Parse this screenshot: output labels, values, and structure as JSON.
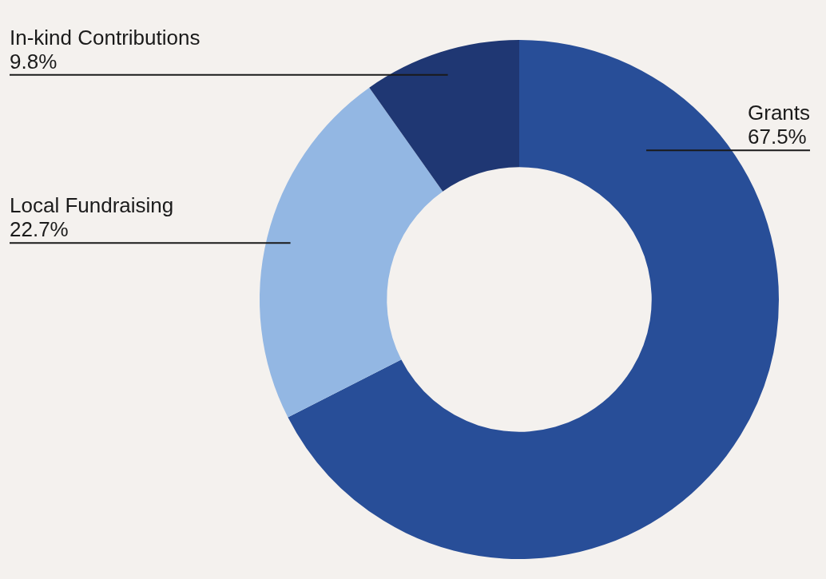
{
  "chart_data": {
    "type": "doughnut",
    "categories": [
      "Grants",
      "Local Fundraising",
      "In-kind Contributions"
    ],
    "values": [
      67.5,
      22.7,
      9.8
    ],
    "value_labels": [
      "67.5%",
      "22.7%",
      "9.8%"
    ],
    "colors": [
      "#284e98",
      "#93b7e3",
      "#1f3773"
    ],
    "data_labels": true
  }
}
